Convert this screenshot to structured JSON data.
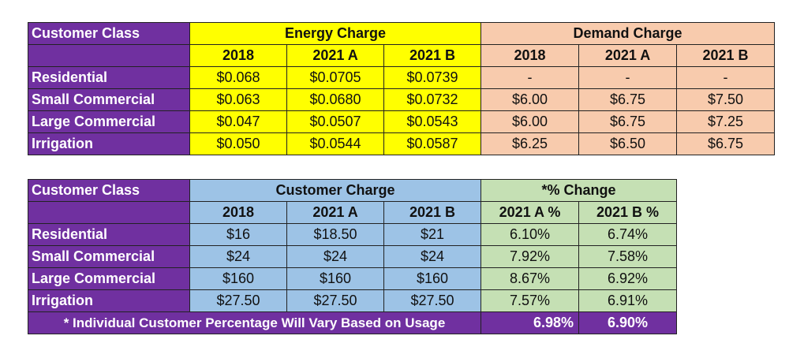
{
  "table1": {
    "class_label": "Customer Class",
    "energy_label": "Energy Charge",
    "demand_label": "Demand Charge",
    "energy_years": [
      "2018",
      "2021 A",
      "2021 B"
    ],
    "demand_years": [
      "2018",
      "2021 A",
      "2021 B"
    ],
    "rows": [
      {
        "class": "Residential",
        "energy": [
          "$0.068",
          "$0.0705",
          "$0.0739"
        ],
        "demand": [
          "-",
          "-",
          "-"
        ]
      },
      {
        "class": "Small Commercial",
        "energy": [
          "$0.063",
          "$0.0680",
          "$0.0732"
        ],
        "demand": [
          "$6.00",
          "$6.75",
          "$7.50"
        ]
      },
      {
        "class": "Large Commercial",
        "energy": [
          "$0.047",
          "$0.0507",
          "$0.0543"
        ],
        "demand": [
          "$6.00",
          "$6.75",
          "$7.25"
        ]
      },
      {
        "class": "Irrigation",
        "energy": [
          "$0.050",
          "$0.0544",
          "$0.0587"
        ],
        "demand": [
          "$6.25",
          "$6.50",
          "$6.75"
        ]
      }
    ]
  },
  "table2": {
    "class_label": "Customer Class",
    "customer_label": "Customer Charge",
    "change_label": "*% Change",
    "customer_years": [
      "2018",
      "2021 A",
      "2021 B"
    ],
    "change_cols": [
      "2021 A %",
      "2021 B %"
    ],
    "rows": [
      {
        "class": "Residential",
        "customer": [
          "$16",
          "$18.50",
          "$21"
        ],
        "change": [
          "6.10%",
          "6.74%"
        ]
      },
      {
        "class": "Small Commercial",
        "customer": [
          "$24",
          "$24",
          "$24"
        ],
        "change": [
          "7.92%",
          "7.58%"
        ]
      },
      {
        "class": "Large Commercial",
        "customer": [
          "$160",
          "$160",
          "$160"
        ],
        "change": [
          "8.67%",
          "6.92%"
        ]
      },
      {
        "class": "Irrigation",
        "customer": [
          "$27.50",
          "$27.50",
          "$27.50"
        ],
        "change": [
          "7.57%",
          "6.91%"
        ]
      }
    ],
    "footnote": "* Individual Customer Percentage Will Vary Based on Usage",
    "totals": [
      "6.98%",
      "6.90%"
    ]
  },
  "colors": {
    "purple": "#7030a0",
    "yellow": "#ffff00",
    "peach": "#f8cbad",
    "blue": "#9dc3e6",
    "green": "#c5e0b4"
  }
}
